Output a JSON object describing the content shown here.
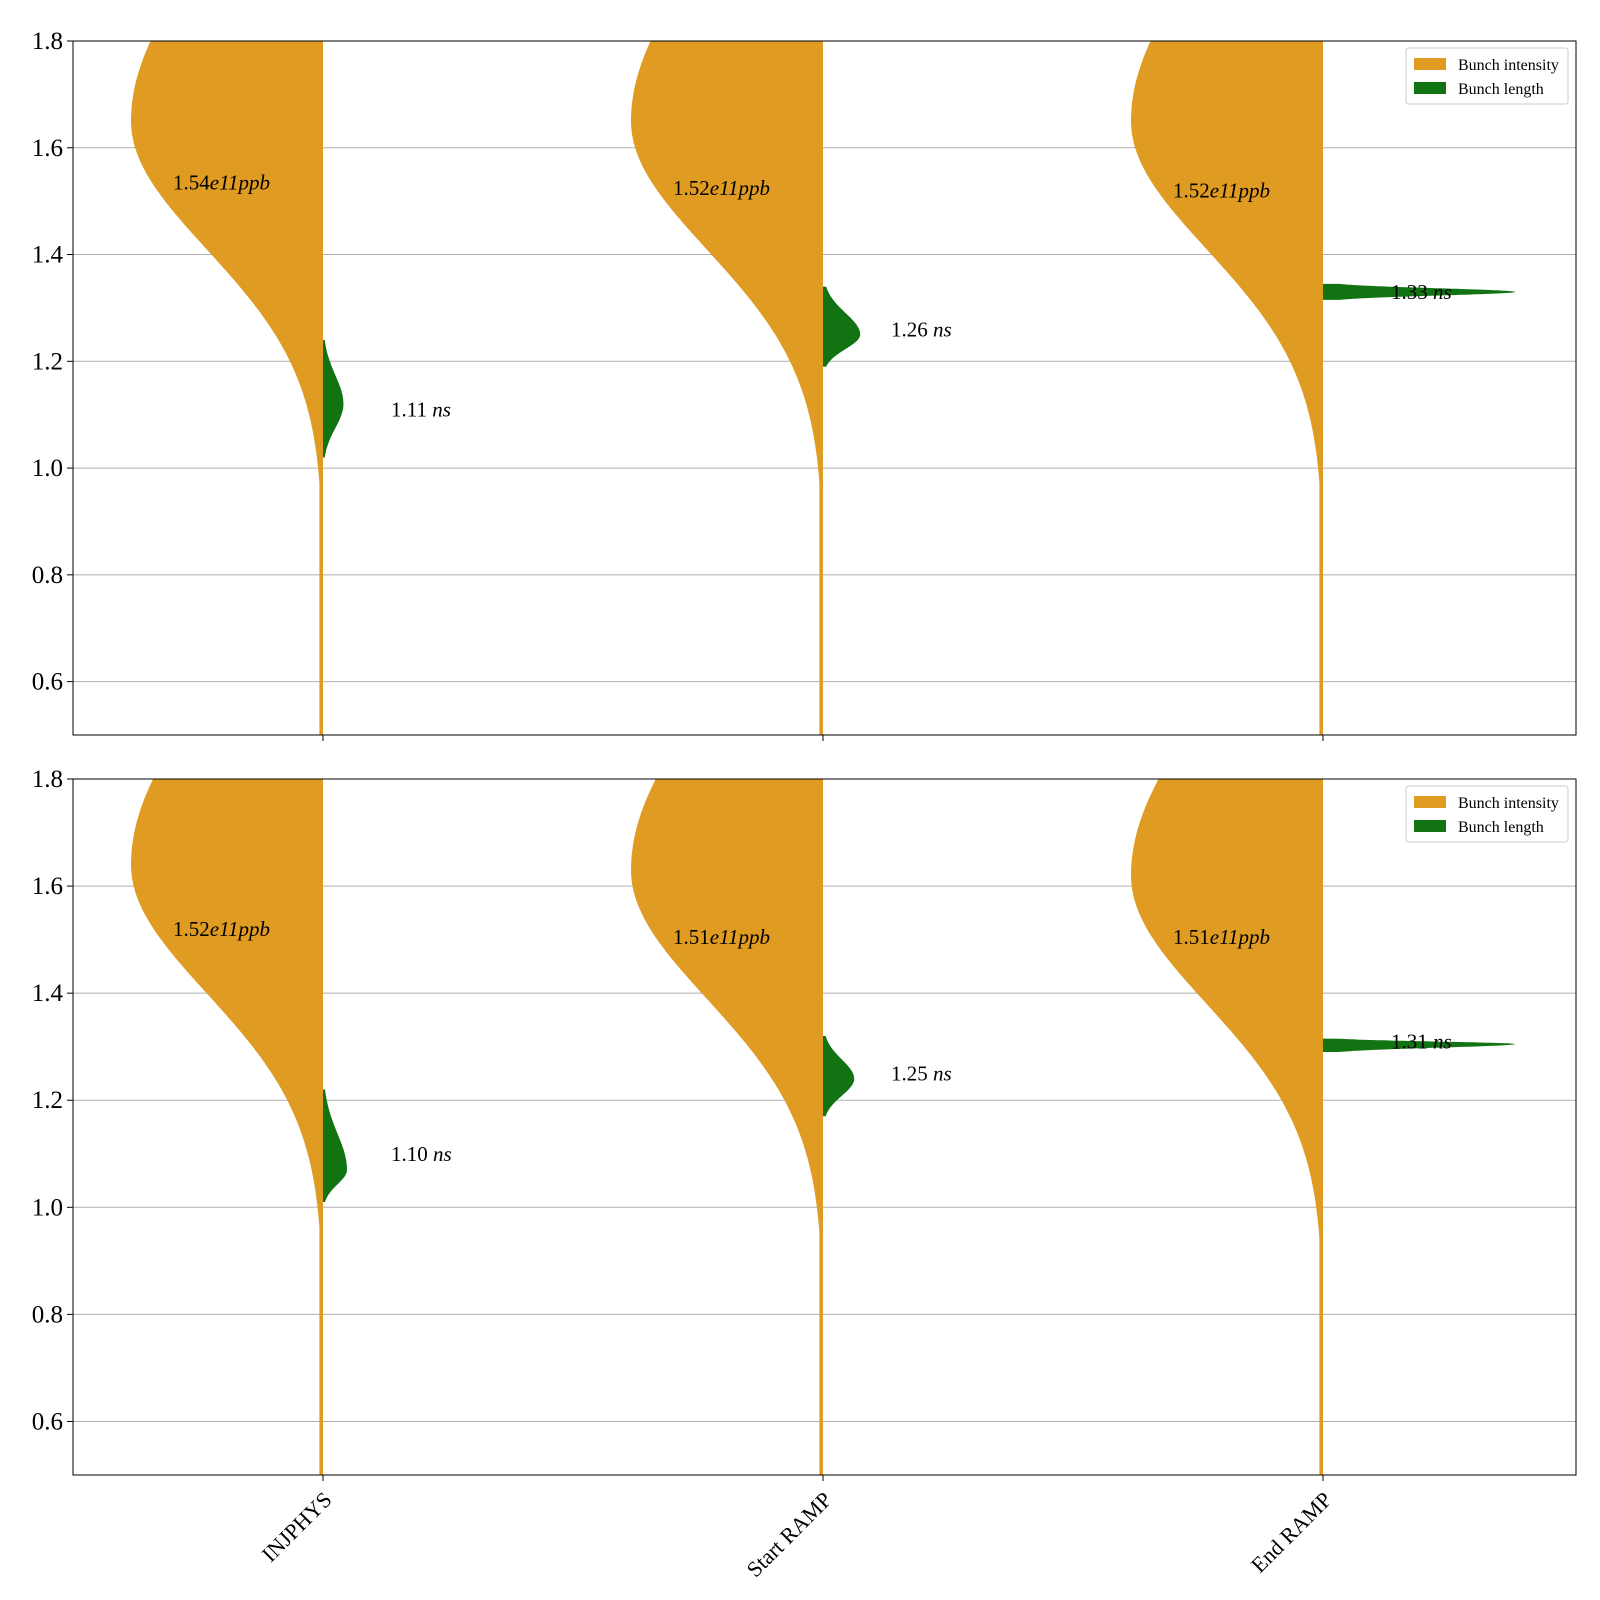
{
  "chart_data": {
    "type": "violin",
    "categories": [
      "INJPHYS",
      "Start RAMP",
      "End RAMP"
    ],
    "ylim": [
      0.5,
      1.8
    ],
    "yticks": [
      "0.6",
      "0.8",
      "1.0",
      "1.2",
      "1.4",
      "1.6",
      "1.8"
    ],
    "grid": "horizontal",
    "legend": {
      "placement": "top-right",
      "entries": [
        {
          "label": "Bunch intensity",
          "color": "#DF9B22"
        },
        {
          "label": "Bunch length",
          "color": "#127312"
        }
      ]
    },
    "colors": {
      "intensity": "#DF9B22",
      "length": "#127312"
    },
    "panels": [
      {
        "intensity": [
          {
            "median_label_num": "1.54",
            "median_label_unit": "e11ppb",
            "label_y": 1.535,
            "mode": 1.65,
            "spread": 0.24,
            "max_halfwidth": 0.16,
            "lower_tail": 0.5
          },
          {
            "median_label_num": "1.52",
            "median_label_unit": "e11ppb",
            "label_y": 1.525,
            "mode": 1.65,
            "spread": 0.24,
            "max_halfwidth": 0.16,
            "lower_tail": 0.5
          },
          {
            "median_label_num": "1.52",
            "median_label_unit": "e11ppb",
            "label_y": 1.52,
            "mode": 1.65,
            "spread": 0.24,
            "max_halfwidth": 0.16,
            "lower_tail": 0.5
          }
        ],
        "length": [
          {
            "label_num": "1.11",
            "label_unit": "ns",
            "value": 1.11,
            "min": 1.02,
            "max": 1.24,
            "mode": 1.12,
            "max_halfwidth": 0.017
          },
          {
            "label_num": "1.26",
            "label_unit": "ns",
            "value": 1.26,
            "min": 1.19,
            "max": 1.34,
            "mode": 1.25,
            "max_halfwidth": 0.031
          },
          {
            "label_num": "1.33",
            "label_unit": "ns",
            "value": 1.33,
            "min": 1.315,
            "max": 1.345,
            "mode": 1.33,
            "max_halfwidth": 0.16
          }
        ]
      },
      {
        "intensity": [
          {
            "median_label_num": "1.52",
            "median_label_unit": "e11ppb",
            "label_y": 1.52,
            "mode": 1.64,
            "spread": 0.24,
            "max_halfwidth": 0.16,
            "lower_tail": 0.5
          },
          {
            "median_label_num": "1.51",
            "median_label_unit": "e11ppb",
            "label_y": 1.505,
            "mode": 1.63,
            "spread": 0.24,
            "max_halfwidth": 0.16,
            "lower_tail": 0.5
          },
          {
            "median_label_num": "1.51",
            "median_label_unit": "e11ppb",
            "label_y": 1.505,
            "mode": 1.62,
            "spread": 0.24,
            "max_halfwidth": 0.16,
            "lower_tail": 0.5
          }
        ],
        "length": [
          {
            "label_num": "1.10",
            "label_unit": "ns",
            "value": 1.1,
            "min": 1.01,
            "max": 1.22,
            "mode": 1.07,
            "max_halfwidth": 0.02
          },
          {
            "label_num": "1.25",
            "label_unit": "ns",
            "value": 1.25,
            "min": 1.17,
            "max": 1.32,
            "mode": 1.24,
            "max_halfwidth": 0.026
          },
          {
            "label_num": "1.31",
            "label_unit": "ns",
            "value": 1.31,
            "min": 1.29,
            "max": 1.315,
            "mode": 1.305,
            "max_halfwidth": 0.16
          }
        ]
      }
    ]
  }
}
